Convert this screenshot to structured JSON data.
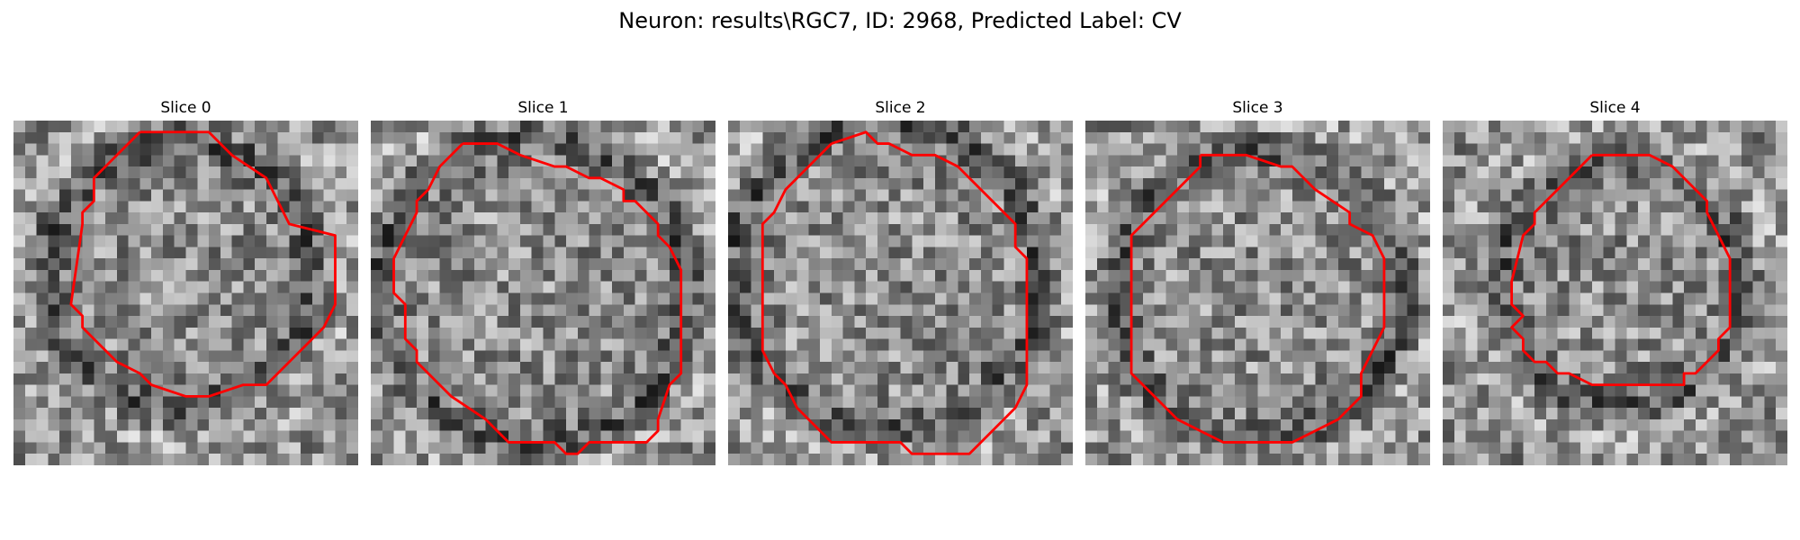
{
  "figure": {
    "title": "Neuron: results\\RGC7, ID: 2968, Predicted Label: CV"
  },
  "colors": {
    "contour": "#ff0000",
    "background": "#ffffff"
  },
  "image": {
    "grid_size": 30,
    "colormap": "gray"
  },
  "panels": [
    {
      "title": "Slice 0",
      "seed": 11,
      "contour": [
        [
          11,
          1
        ],
        [
          17,
          1
        ],
        [
          19,
          3
        ],
        [
          22,
          5
        ],
        [
          24,
          9
        ],
        [
          28,
          10
        ],
        [
          28,
          16
        ],
        [
          27,
          18
        ],
        [
          23,
          22
        ],
        [
          22,
          23
        ],
        [
          20,
          23
        ],
        [
          17,
          24
        ],
        [
          15,
          24
        ],
        [
          12,
          23
        ],
        [
          11,
          22
        ],
        [
          9,
          21
        ],
        [
          7,
          19
        ],
        [
          6,
          18
        ],
        [
          6,
          17
        ],
        [
          5,
          16
        ],
        [
          6,
          9
        ],
        [
          6,
          8
        ],
        [
          7,
          7
        ],
        [
          7,
          5
        ],
        [
          9,
          3
        ],
        [
          11,
          1
        ]
      ]
    },
    {
      "title": "Slice 1",
      "seed": 23,
      "contour": [
        [
          8,
          2
        ],
        [
          11,
          2
        ],
        [
          13,
          3
        ],
        [
          16,
          4
        ],
        [
          17,
          4
        ],
        [
          19,
          5
        ],
        [
          20,
          5
        ],
        [
          22,
          6
        ],
        [
          22,
          7
        ],
        [
          23,
          7
        ],
        [
          25,
          9
        ],
        [
          25,
          10
        ],
        [
          26,
          11
        ],
        [
          27,
          13
        ],
        [
          27,
          22
        ],
        [
          26,
          23
        ],
        [
          25,
          26
        ],
        [
          25,
          27
        ],
        [
          24,
          28
        ],
        [
          19,
          28
        ],
        [
          18,
          29
        ],
        [
          17,
          29
        ],
        [
          16,
          28
        ],
        [
          12,
          28
        ],
        [
          11,
          27
        ],
        [
          10,
          26
        ],
        [
          7,
          24
        ],
        [
          5,
          22
        ],
        [
          4,
          21
        ],
        [
          4,
          20
        ],
        [
          3,
          19
        ],
        [
          3,
          16
        ],
        [
          2,
          15
        ],
        [
          2,
          12
        ],
        [
          3,
          10
        ],
        [
          4,
          8
        ],
        [
          4,
          7
        ],
        [
          5,
          6
        ],
        [
          6,
          4
        ],
        [
          8,
          2
        ]
      ]
    },
    {
      "title": "Slice 2",
      "seed": 37,
      "contour": [
        [
          9,
          2
        ],
        [
          12,
          1
        ],
        [
          13,
          2
        ],
        [
          14,
          2
        ],
        [
          16,
          3
        ],
        [
          18,
          3
        ],
        [
          20,
          4
        ],
        [
          21,
          5
        ],
        [
          22,
          6
        ],
        [
          24,
          8
        ],
        [
          25,
          9
        ],
        [
          25,
          11
        ],
        [
          26,
          12
        ],
        [
          26,
          23
        ],
        [
          25,
          25
        ],
        [
          24,
          26
        ],
        [
          22,
          28
        ],
        [
          21,
          29
        ],
        [
          16,
          29
        ],
        [
          15,
          28
        ],
        [
          12,
          28
        ],
        [
          9,
          28
        ],
        [
          6,
          25
        ],
        [
          5,
          23
        ],
        [
          4,
          22
        ],
        [
          3,
          20
        ],
        [
          3,
          19
        ],
        [
          3,
          11
        ],
        [
          3,
          9
        ],
        [
          4,
          8
        ],
        [
          5,
          6
        ],
        [
          6,
          5
        ],
        [
          7,
          4
        ],
        [
          8,
          3
        ],
        [
          9,
          2
        ]
      ]
    },
    {
      "title": "Slice 3",
      "seed": 53,
      "contour": [
        [
          10,
          3
        ],
        [
          13,
          3
        ],
        [
          14,
          3
        ],
        [
          17,
          4
        ],
        [
          18,
          4
        ],
        [
          20,
          6
        ],
        [
          23,
          8
        ],
        [
          23,
          9
        ],
        [
          25,
          10
        ],
        [
          26,
          12
        ],
        [
          26,
          15
        ],
        [
          26,
          18
        ],
        [
          25,
          20
        ],
        [
          24,
          22
        ],
        [
          24,
          24
        ],
        [
          22,
          26
        ],
        [
          20,
          27
        ],
        [
          18,
          28
        ],
        [
          16,
          28
        ],
        [
          14,
          28
        ],
        [
          12,
          28
        ],
        [
          10,
          27
        ],
        [
          8,
          26
        ],
        [
          6,
          24
        ],
        [
          5,
          23
        ],
        [
          4,
          22
        ],
        [
          4,
          19
        ],
        [
          4,
          10
        ],
        [
          6,
          8
        ],
        [
          7,
          7
        ],
        [
          8,
          6
        ],
        [
          10,
          4
        ],
        [
          10,
          3
        ]
      ]
    },
    {
      "title": "Slice 4",
      "seed": 71,
      "contour": [
        [
          13,
          3
        ],
        [
          15,
          3
        ],
        [
          16,
          3
        ],
        [
          17,
          3
        ],
        [
          18,
          3
        ],
        [
          20,
          4
        ],
        [
          22,
          6
        ],
        [
          23,
          7
        ],
        [
          23,
          8
        ],
        [
          24,
          10
        ],
        [
          25,
          12
        ],
        [
          25,
          13
        ],
        [
          25,
          18
        ],
        [
          24,
          19
        ],
        [
          24,
          20
        ],
        [
          23,
          21
        ],
        [
          22,
          22
        ],
        [
          21,
          22
        ],
        [
          21,
          23
        ],
        [
          19,
          23
        ],
        [
          18,
          23
        ],
        [
          17,
          23
        ],
        [
          15,
          23
        ],
        [
          14,
          23
        ],
        [
          13,
          23
        ],
        [
          11,
          22
        ],
        [
          10,
          22
        ],
        [
          9,
          21
        ],
        [
          8,
          21
        ],
        [
          7,
          20
        ],
        [
          7,
          19
        ],
        [
          6,
          18
        ],
        [
          7,
          17
        ],
        [
          6,
          16
        ],
        [
          6,
          14
        ],
        [
          7,
          10
        ],
        [
          8,
          9
        ],
        [
          8,
          8
        ],
        [
          9,
          7
        ],
        [
          11,
          5
        ],
        [
          13,
          3
        ]
      ]
    }
  ]
}
